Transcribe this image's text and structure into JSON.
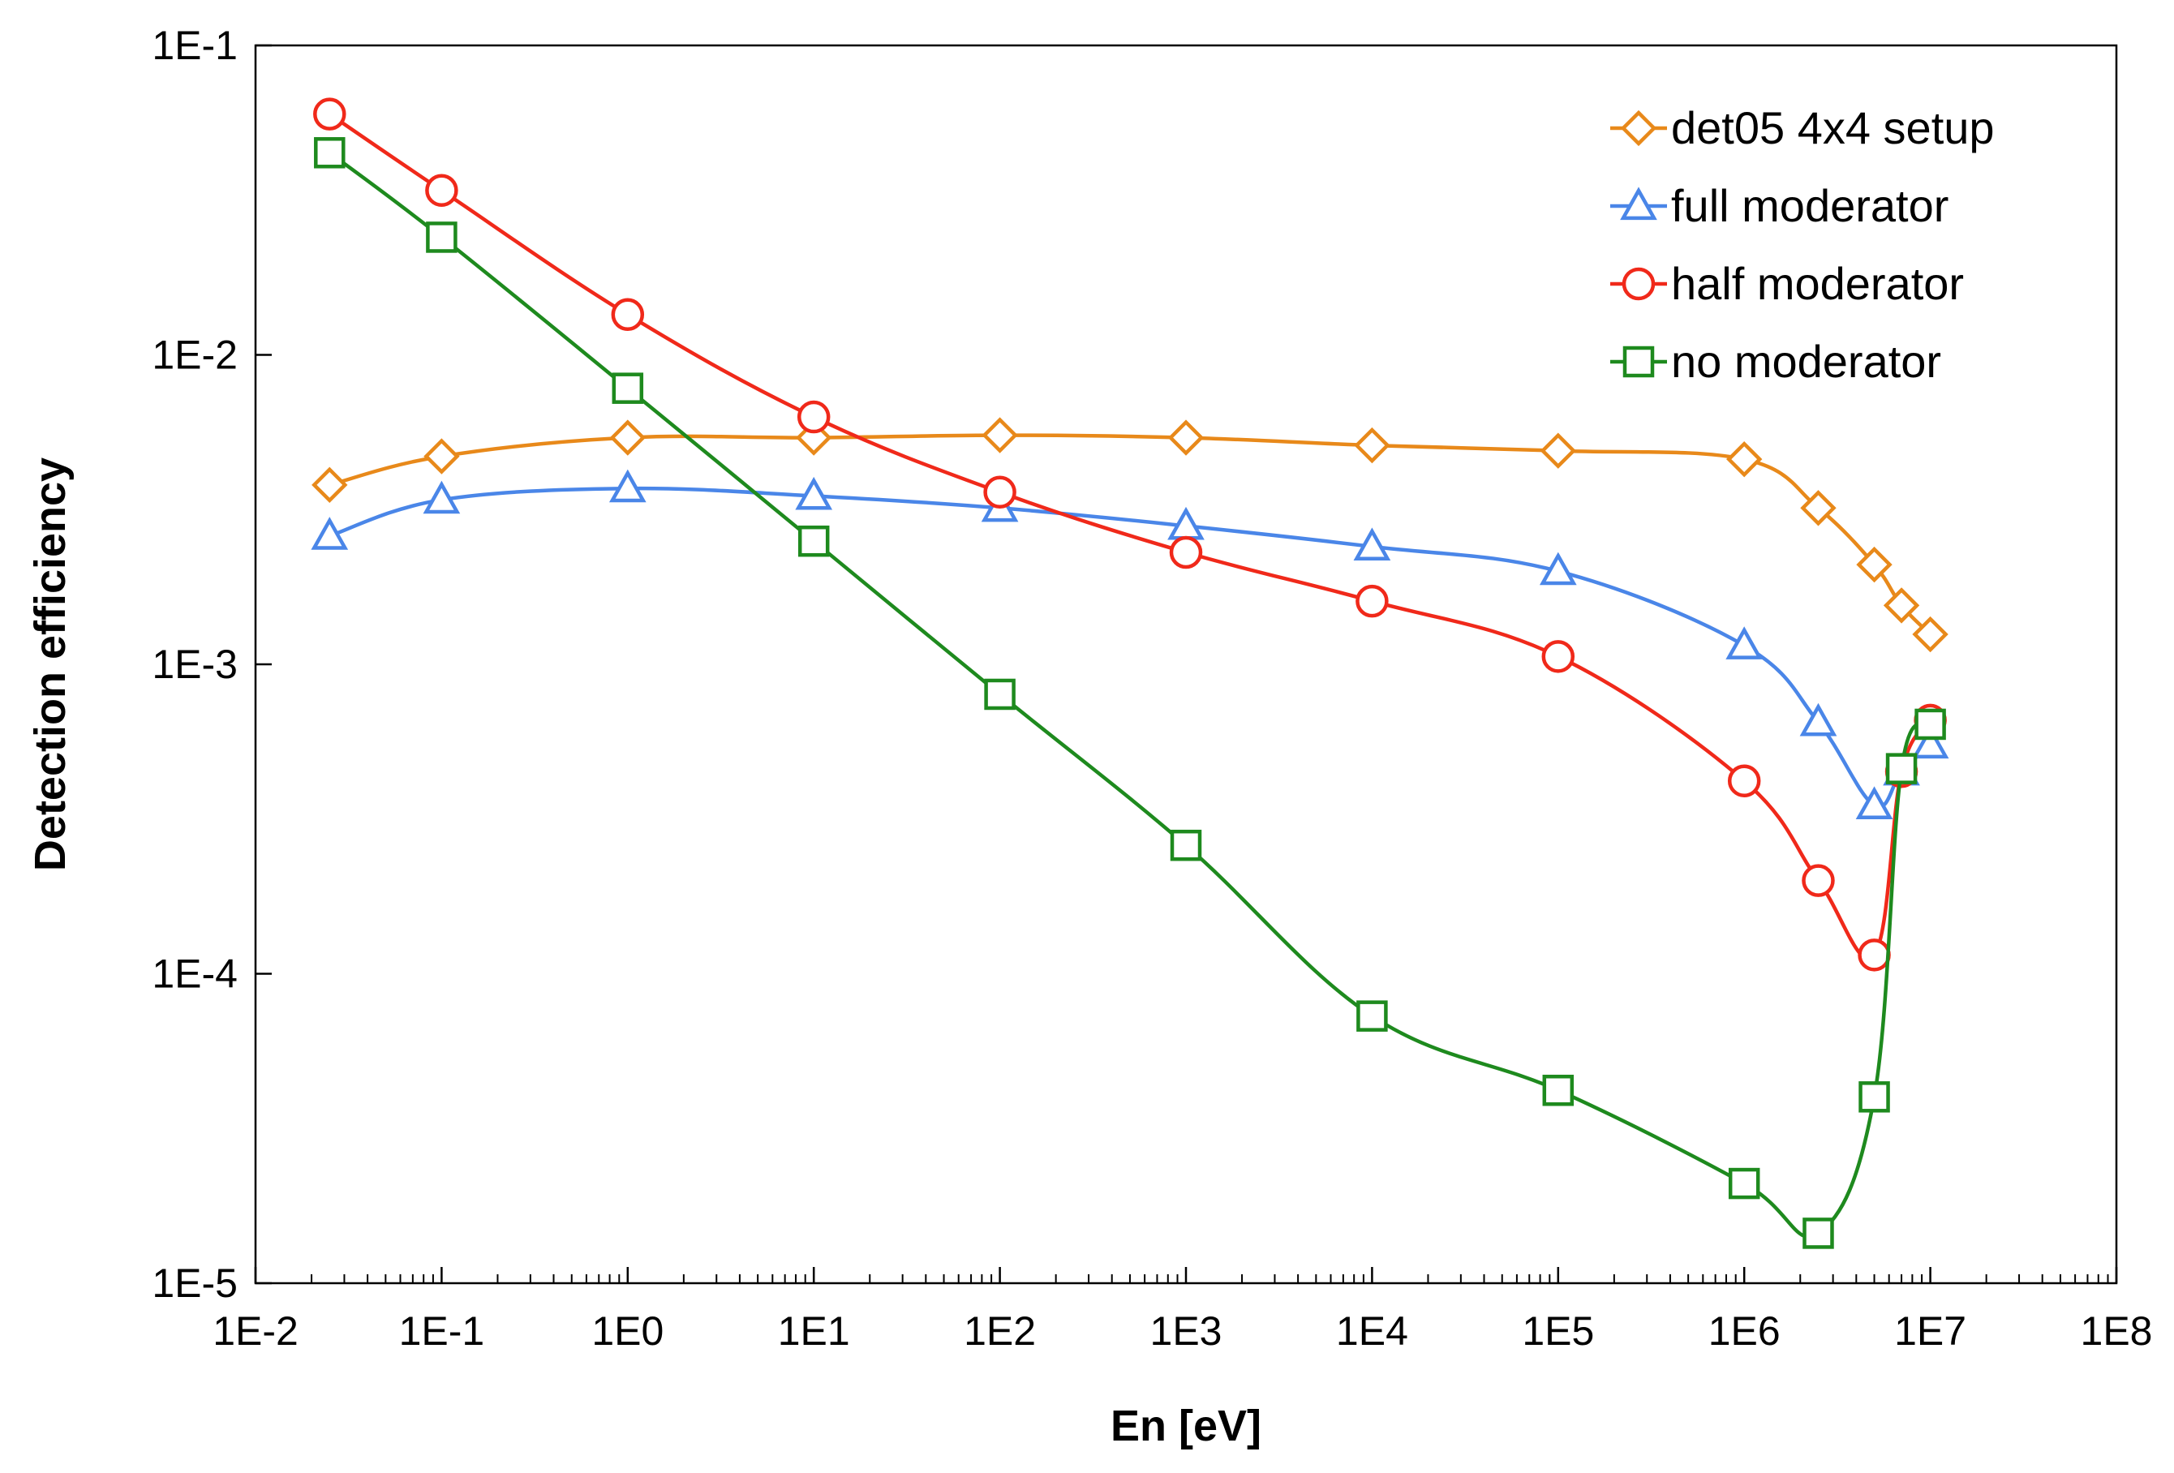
{
  "chart_data": {
    "type": "line",
    "xscale": "log",
    "yscale": "log",
    "xlabel": "En [eV]",
    "ylabel": "Detection efficiency",
    "xlim": [
      0.01,
      100000000
    ],
    "ylim": [
      1e-05,
      0.1
    ],
    "grid": false,
    "legend_position": "top-right",
    "x_ticks": [
      {
        "value": 0.01,
        "label": "1E-2"
      },
      {
        "value": 0.1,
        "label": "1E-1"
      },
      {
        "value": 1,
        "label": "1E0"
      },
      {
        "value": 10,
        "label": "1E1"
      },
      {
        "value": 100,
        "label": "1E2"
      },
      {
        "value": 1000,
        "label": "1E3"
      },
      {
        "value": 10000,
        "label": "1E4"
      },
      {
        "value": 100000,
        "label": "1E5"
      },
      {
        "value": 1000000,
        "label": "1E6"
      },
      {
        "value": 10000000,
        "label": "1E7"
      },
      {
        "value": 100000000,
        "label": "1E8"
      }
    ],
    "y_ticks": [
      {
        "value": 1e-05,
        "label": "1E-5"
      },
      {
        "value": 0.0001,
        "label": "1E-4"
      },
      {
        "value": 0.001,
        "label": "1E-3"
      },
      {
        "value": 0.01,
        "label": "1E-2"
      },
      {
        "value": 0.1,
        "label": "1E-1"
      }
    ],
    "series": [
      {
        "name": "det05 4x4 setup",
        "color": "#E8891A",
        "marker": "diamond",
        "points": [
          [
            0.025,
            0.0038
          ],
          [
            0.1,
            0.0047
          ],
          [
            1,
            0.0054
          ],
          [
            10,
            0.0054
          ],
          [
            100,
            0.0055
          ],
          [
            1000,
            0.0054
          ],
          [
            10000,
            0.0051
          ],
          [
            100000,
            0.0049
          ],
          [
            1000000,
            0.0046
          ],
          [
            2500000,
            0.0032
          ],
          [
            5000000,
            0.0021
          ],
          [
            7000000,
            0.00155
          ],
          [
            10000000,
            0.00125
          ]
        ]
      },
      {
        "name": "full moderator",
        "color": "#4A86E8",
        "marker": "triangle",
        "points": [
          [
            0.025,
            0.0026
          ],
          [
            0.1,
            0.0034
          ],
          [
            1,
            0.0037
          ],
          [
            10,
            0.0035
          ],
          [
            100,
            0.0032
          ],
          [
            1000,
            0.0028
          ],
          [
            10000,
            0.0024
          ],
          [
            100000,
            0.002
          ],
          [
            1000000,
            0.00115
          ],
          [
            2500000,
            0.00065
          ],
          [
            5000000,
            0.00035
          ],
          [
            7000000,
            0.00045
          ],
          [
            10000000,
            0.00055
          ]
        ]
      },
      {
        "name": "half moderator",
        "color": "#F0291A",
        "marker": "circle",
        "points": [
          [
            0.025,
            0.06
          ],
          [
            0.1,
            0.034
          ],
          [
            1,
            0.0135
          ],
          [
            10,
            0.0063
          ],
          [
            100,
            0.0036
          ],
          [
            1000,
            0.0023
          ],
          [
            10000,
            0.0016
          ],
          [
            100000,
            0.00106
          ],
          [
            1000000,
            0.00042
          ],
          [
            2500000,
            0.0002
          ],
          [
            5000000,
            0.000115
          ],
          [
            7000000,
            0.00045
          ],
          [
            10000000,
            0.00066
          ]
        ]
      },
      {
        "name": "no moderator",
        "color": "#1E8A1E",
        "marker": "square",
        "points": [
          [
            0.025,
            0.045
          ],
          [
            0.1,
            0.024
          ],
          [
            1,
            0.0078
          ],
          [
            10,
            0.0025
          ],
          [
            100,
            0.0008
          ],
          [
            1000,
            0.00026
          ],
          [
            10000,
            7.3e-05
          ],
          [
            100000,
            4.2e-05
          ],
          [
            1000000,
            2.1e-05
          ],
          [
            2500000,
            1.45e-05
          ],
          [
            5000000,
            4e-05
          ],
          [
            7000000,
            0.00046
          ],
          [
            10000000,
            0.00064
          ]
        ]
      }
    ]
  }
}
